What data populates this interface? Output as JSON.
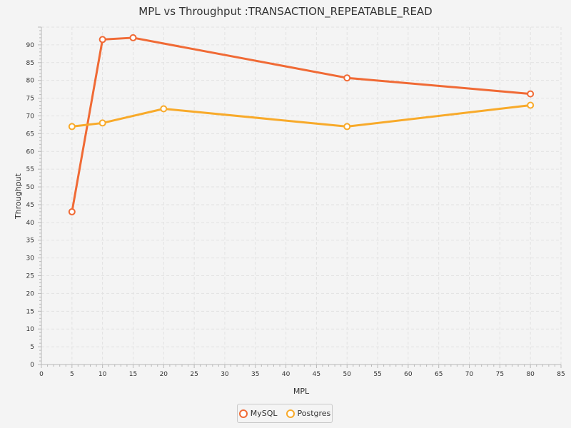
{
  "chart_data": {
    "type": "line",
    "title": "MPL vs Throughput :TRANSACTION_REPEATABLE_READ",
    "xlabel": "MPL",
    "ylabel": "Throughput",
    "xlim": [
      0,
      85
    ],
    "ylim": [
      0,
      95
    ],
    "x_major_step": 5,
    "y_major_step": 5,
    "grid": true,
    "legend": "bottom-center",
    "series": [
      {
        "name": "MySQL",
        "color": "#f06a35",
        "x": [
          5,
          10,
          15,
          50,
          80
        ],
        "y": [
          43,
          91.5,
          92,
          80.7,
          76.2
        ]
      },
      {
        "name": "Postgres",
        "color": "#f8aa2a",
        "x": [
          5,
          10,
          20,
          50,
          80
        ],
        "y": [
          67,
          68,
          72,
          67,
          73
        ]
      }
    ]
  }
}
